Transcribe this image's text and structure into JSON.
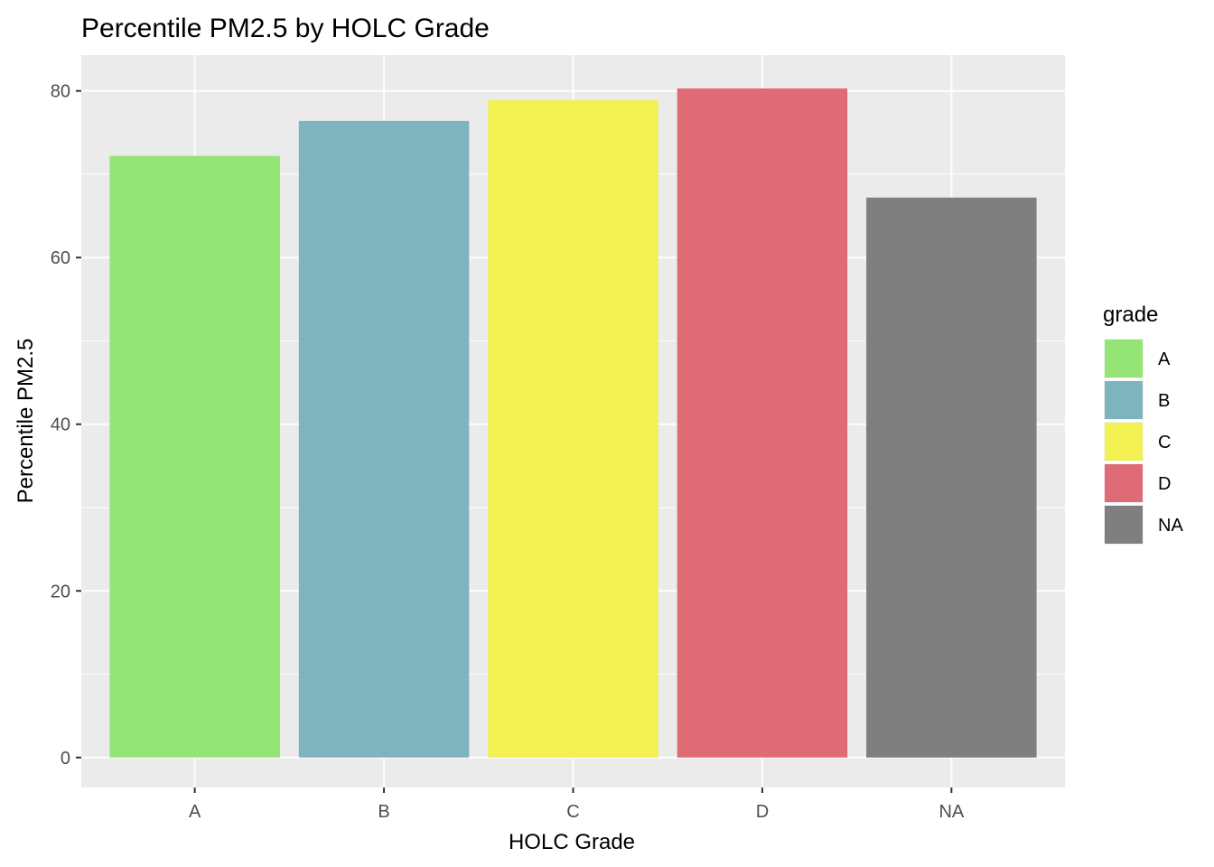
{
  "chart_data": {
    "type": "bar",
    "title": "Percentile PM2.5 by HOLC Grade",
    "xlabel": "HOLC Grade",
    "ylabel": "Percentile PM2.5",
    "categories": [
      "A",
      "B",
      "C",
      "D",
      "NA"
    ],
    "values": [
      72.2,
      76.4,
      78.9,
      80.3,
      67.2
    ],
    "colors": [
      "#95e476",
      "#7db4bd",
      "#f2f052",
      "#df6b77",
      "#7f7f7f"
    ],
    "ylim": [
      -3.6,
      84.3
    ],
    "yticks": [
      0,
      20,
      40,
      60,
      80
    ],
    "grid": true,
    "background": "#ebebeb",
    "legend": {
      "title": "grade",
      "position": "right",
      "entries": [
        "A",
        "B",
        "C",
        "D",
        "NA"
      ]
    }
  }
}
